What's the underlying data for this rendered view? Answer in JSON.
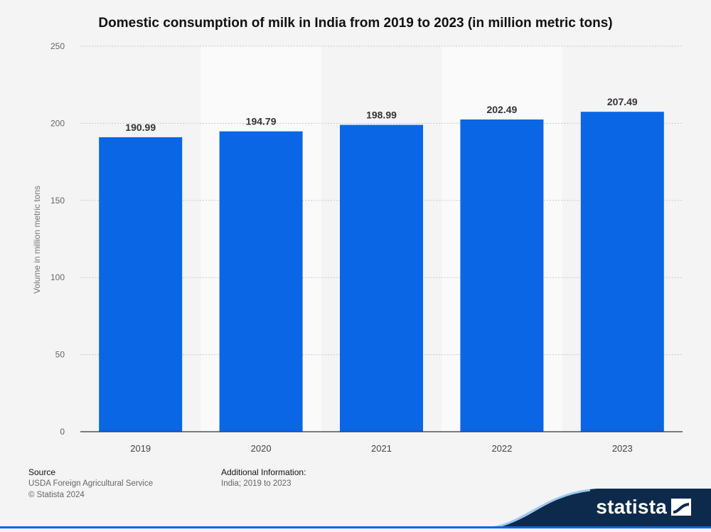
{
  "chart_data": {
    "type": "bar",
    "title": "Domestic consumption of milk in India from 2019 to 2023 (in million metric tons)",
    "xlabel": "",
    "ylabel": "Volume in million metric tons",
    "categories": [
      "2019",
      "2020",
      "2021",
      "2022",
      "2023"
    ],
    "values": [
      190.99,
      194.79,
      198.99,
      202.49,
      207.49
    ],
    "value_labels": [
      "190.99",
      "194.79",
      "198.99",
      "202.49",
      "207.49"
    ],
    "ylim": [
      0,
      250
    ],
    "yticks": [
      0,
      50,
      100,
      150,
      200,
      250
    ],
    "grid": true,
    "bar_color": "#0a66e4"
  },
  "footer": {
    "source_heading": "Source",
    "source_lines": [
      "USDA Foreign Agricultural Service",
      "© Statista 2024"
    ],
    "additional_heading": "Additional Information:",
    "additional_text": "India; 2019 to 2023"
  },
  "brand": {
    "name": "statista",
    "color": "#0d2a4c"
  }
}
